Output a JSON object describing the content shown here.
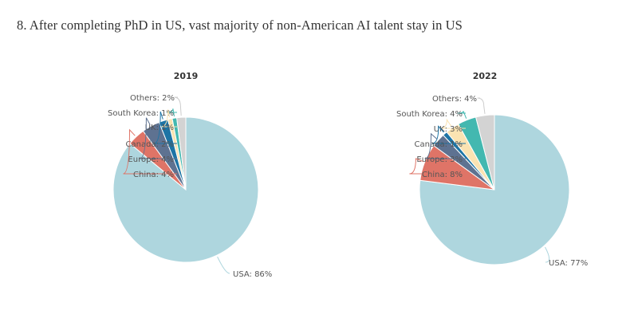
{
  "page": {
    "title": "8. After completing PhD in US, vast majority of non-American AI talent stay in US"
  },
  "chart_data": [
    {
      "type": "pie",
      "title": "2019",
      "slices": [
        {
          "name": "USA",
          "value": 86,
          "label": "USA: 86%",
          "color": "#aed6de"
        },
        {
          "name": "China",
          "value": 4,
          "label": "China: 4%",
          "color": "#df7467"
        },
        {
          "name": "Europe",
          "value": 4,
          "label": "Europe: 4%",
          "color": "#5e7291"
        },
        {
          "name": "Canada",
          "value": 2,
          "label": "Canada: 2%",
          "color": "#1d74a5"
        },
        {
          "name": "UK",
          "value": 1,
          "label": "UK: 1%",
          "color": "#fbe3b2"
        },
        {
          "name": "South Korea",
          "value": 1,
          "label": "South Korea: 1%",
          "color": "#43b8b0"
        },
        {
          "name": "Others",
          "value": 2,
          "label": "Others: 2%",
          "color": "#d3d3d3"
        }
      ]
    },
    {
      "type": "pie",
      "title": "2022",
      "slices": [
        {
          "name": "USA",
          "value": 77,
          "label": "USA: 77%",
          "color": "#aed6de"
        },
        {
          "name": "China",
          "value": 8,
          "label": "China: 8%",
          "color": "#df7467"
        },
        {
          "name": "Europe",
          "value": 3,
          "label": "Europe: 3%",
          "color": "#5e7291"
        },
        {
          "name": "Canada",
          "value": 1,
          "label": "Canada: 1%",
          "color": "#1d74a5"
        },
        {
          "name": "UK",
          "value": 3,
          "label": "UK: 3%",
          "color": "#fbe3b2"
        },
        {
          "name": "South Korea",
          "value": 4,
          "label": "South Korea: 4%",
          "color": "#43b8b0"
        },
        {
          "name": "Others",
          "value": 4,
          "label": "Others: 4%",
          "color": "#d3d3d3"
        }
      ]
    }
  ]
}
